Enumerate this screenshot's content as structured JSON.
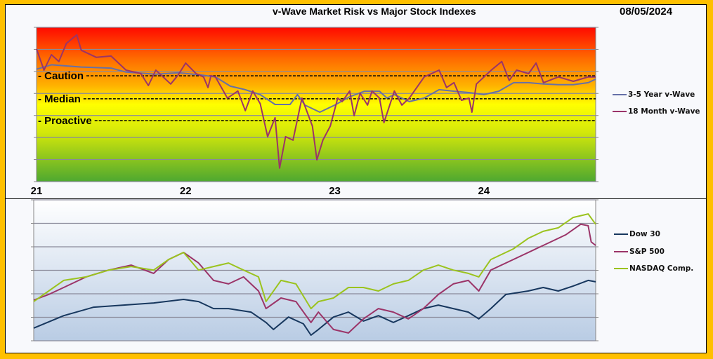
{
  "chart_data": [
    {
      "type": "line",
      "title": "v-Wave Market Risk vs Major Stock Indexes",
      "date": "08/05/2024",
      "x_tick_labels": [
        "21",
        "22",
        "23",
        "24"
      ],
      "x_ticks": [
        2021,
        2022,
        2023,
        2024
      ],
      "xlim": [
        2021,
        2024.75
      ],
      "ylim": [
        0,
        7
      ],
      "grid": true,
      "legend_position": "right",
      "reference_lines": [
        {
          "label": "- Caution",
          "value": 4.8
        },
        {
          "label": "- Median",
          "value": 3.76
        },
        {
          "label": "- Proactive",
          "value": 2.77
        }
      ],
      "series": [
        {
          "name": "3-5 Year v-Wave",
          "color": "#6670A8",
          "x": [
            2021.0,
            2021.1,
            2021.3,
            2021.5,
            2021.6,
            2021.8,
            2021.95,
            2022.1,
            2022.2,
            2022.3,
            2022.4,
            2022.5,
            2022.6,
            2022.7,
            2022.75,
            2022.8,
            2022.9,
            2023.0,
            2023.1,
            2023.2,
            2023.3,
            2023.35,
            2023.4,
            2023.5,
            2023.6,
            2023.7,
            2023.8,
            2023.9,
            2024.0,
            2024.1,
            2024.2,
            2024.3,
            2024.4,
            2024.5,
            2024.6,
            2024.7,
            2024.75
          ],
          "values": [
            5.1,
            5.3,
            5.2,
            5.15,
            4.97,
            4.87,
            4.94,
            4.84,
            4.75,
            4.33,
            4.17,
            3.95,
            3.5,
            3.5,
            3.95,
            3.47,
            3.15,
            3.47,
            3.85,
            4.1,
            4.1,
            3.79,
            3.95,
            3.63,
            3.79,
            4.17,
            4.1,
            4.04,
            3.95,
            4.1,
            4.49,
            4.49,
            4.43,
            4.4,
            4.4,
            4.49,
            4.65
          ]
        },
        {
          "name": "18 Month v-Wave",
          "color": "#9B3468",
          "x": [
            2021.0,
            2021.05,
            2021.1,
            2021.15,
            2021.2,
            2021.27,
            2021.3,
            2021.4,
            2021.5,
            2021.6,
            2021.7,
            2021.75,
            2021.8,
            2021.9,
            2021.95,
            2022.0,
            2022.07,
            2022.12,
            2022.15,
            2022.17,
            2022.2,
            2022.28,
            2022.35,
            2022.4,
            2022.45,
            2022.5,
            2022.55,
            2022.6,
            2022.63,
            2022.67,
            2022.72,
            2022.78,
            2022.85,
            2022.88,
            2022.92,
            2022.97,
            2023.02,
            2023.05,
            2023.1,
            2023.13,
            2023.17,
            2023.22,
            2023.25,
            2023.3,
            2023.33,
            2023.4,
            2023.45,
            2023.5,
            2023.55,
            2023.6,
            2023.7,
            2023.75,
            2023.8,
            2023.85,
            2023.9,
            2023.92,
            2023.95,
            2024.05,
            2024.12,
            2024.17,
            2024.22,
            2024.3,
            2024.35,
            2024.4,
            2024.5,
            2024.6,
            2024.7,
            2024.75
          ],
          "values": [
            6.02,
            5.06,
            5.76,
            5.45,
            6.27,
            6.66,
            5.96,
            5.64,
            5.7,
            5.06,
            4.9,
            4.36,
            5.06,
            4.43,
            4.84,
            5.38,
            4.9,
            4.75,
            4.27,
            4.81,
            4.75,
            3.79,
            4.11,
            3.22,
            4.11,
            3.54,
            2.04,
            2.9,
            0.61,
            2.04,
            1.88,
            3.79,
            2.52,
            0.99,
            1.88,
            2.52,
            3.79,
            3.63,
            4.11,
            2.99,
            4.01,
            3.47,
            4.11,
            3.79,
            2.68,
            4.11,
            3.47,
            3.79,
            4.27,
            4.75,
            5.06,
            4.27,
            4.49,
            3.69,
            3.79,
            3.15,
            4.43,
            5.06,
            5.45,
            4.59,
            5.06,
            4.9,
            5.38,
            4.49,
            4.75,
            4.55,
            4.75,
            4.75
          ]
        }
      ]
    },
    {
      "type": "line",
      "title": "",
      "xlim": [
        2021,
        2024.75
      ],
      "ylim": [
        0,
        6
      ],
      "grid": true,
      "legend_position": "right",
      "series": [
        {
          "name": "Dow 30",
          "color": "#17375E",
          "x": [
            2021.0,
            2021.2,
            2021.4,
            2021.6,
            2021.8,
            2022.0,
            2022.1,
            2022.2,
            2022.3,
            2022.45,
            2022.55,
            2022.6,
            2022.7,
            2022.8,
            2022.85,
            2022.9,
            2023.0,
            2023.1,
            2023.2,
            2023.3,
            2023.4,
            2023.5,
            2023.6,
            2023.7,
            2023.8,
            2023.9,
            2023.97,
            2024.05,
            2024.15,
            2024.3,
            2024.4,
            2024.5,
            2024.6,
            2024.7,
            2024.75
          ],
          "values": [
            0.54,
            1.07,
            1.43,
            1.52,
            1.61,
            1.76,
            1.67,
            1.37,
            1.37,
            1.22,
            0.78,
            0.48,
            1.01,
            0.72,
            0.24,
            0.48,
            1.01,
            1.22,
            0.84,
            1.07,
            0.78,
            1.07,
            1.37,
            1.52,
            1.37,
            1.22,
            0.93,
            1.37,
            1.97,
            2.12,
            2.27,
            2.12,
            2.33,
            2.57,
            2.51
          ]
        },
        {
          "name": "S&P 500",
          "color": "#9B3468",
          "x": [
            2021.0,
            2021.1,
            2021.2,
            2021.35,
            2021.5,
            2021.65,
            2021.8,
            2021.9,
            2022.0,
            2022.1,
            2022.2,
            2022.3,
            2022.4,
            2022.5,
            2022.55,
            2022.65,
            2022.75,
            2022.85,
            2022.9,
            2023.0,
            2023.1,
            2023.2,
            2023.3,
            2023.4,
            2023.5,
            2023.6,
            2023.7,
            2023.8,
            2023.9,
            2023.97,
            2024.05,
            2024.2,
            2024.35,
            2024.45,
            2024.55,
            2024.65,
            2024.7,
            2024.72,
            2024.75
          ],
          "values": [
            1.73,
            1.97,
            2.27,
            2.72,
            3.01,
            3.22,
            2.87,
            3.46,
            3.76,
            3.31,
            2.57,
            2.42,
            2.72,
            2.12,
            1.37,
            1.82,
            1.67,
            0.78,
            1.22,
            0.48,
            0.33,
            0.93,
            1.37,
            1.22,
            0.93,
            1.37,
            1.97,
            2.42,
            2.57,
            2.12,
            3.01,
            3.46,
            3.91,
            4.21,
            4.51,
            4.96,
            4.9,
            4.21,
            4.06
          ]
        },
        {
          "name": "NASDAQ Comp.",
          "color": "#9BC31E",
          "x": [
            2021.0,
            2021.1,
            2021.2,
            2021.35,
            2021.5,
            2021.65,
            2021.8,
            2021.9,
            2022.0,
            2022.1,
            2022.2,
            2022.3,
            2022.4,
            2022.5,
            2022.55,
            2022.65,
            2022.75,
            2022.85,
            2022.9,
            2023.0,
            2023.1,
            2023.2,
            2023.3,
            2023.4,
            2023.5,
            2023.6,
            2023.7,
            2023.8,
            2023.9,
            2023.97,
            2024.05,
            2024.2,
            2024.3,
            2024.4,
            2024.5,
            2024.6,
            2024.7,
            2024.75
          ],
          "values": [
            1.67,
            2.12,
            2.57,
            2.72,
            3.01,
            3.16,
            3.01,
            3.46,
            3.76,
            3.01,
            3.16,
            3.31,
            3.01,
            2.72,
            1.67,
            2.57,
            2.42,
            1.37,
            1.67,
            1.82,
            2.27,
            2.27,
            2.12,
            2.42,
            2.57,
            3.01,
            3.22,
            3.01,
            2.87,
            2.72,
            3.46,
            3.91,
            4.36,
            4.66,
            4.81,
            5.25,
            5.4,
            4.96
          ]
        }
      ]
    }
  ]
}
